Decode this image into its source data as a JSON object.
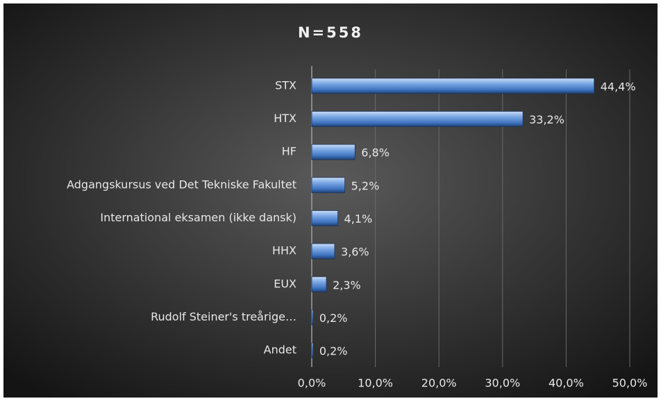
{
  "chart_data": {
    "type": "bar",
    "orientation": "horizontal",
    "title": "N=558",
    "categories": [
      "STX",
      "HTX",
      "HF",
      "Adgangskursus ved Det Tekniske Fakultet",
      "International eksamen (ikke dansk)",
      "HHX",
      "EUX",
      "Rudolf Steiner's treårige…",
      "Andet"
    ],
    "values": [
      44.4,
      33.2,
      6.8,
      5.2,
      4.1,
      3.6,
      2.3,
      0.2,
      0.2
    ],
    "value_labels": [
      "44,4%",
      "33,2%",
      "6,8%",
      "5,2%",
      "4,1%",
      "3,6%",
      "2,3%",
      "0,2%",
      "0,2%"
    ],
    "color": "#5b8fd6",
    "xlim": [
      0,
      50
    ],
    "xticks": [
      {
        "value": 0,
        "label": "0,0%"
      },
      {
        "value": 10,
        "label": "10,0%"
      },
      {
        "value": 20,
        "label": "20,0%"
      },
      {
        "value": 30,
        "label": "30,0%"
      },
      {
        "value": 40,
        "label": "40,0%"
      },
      {
        "value": 50,
        "label": "50,0%"
      }
    ],
    "grid": true
  }
}
